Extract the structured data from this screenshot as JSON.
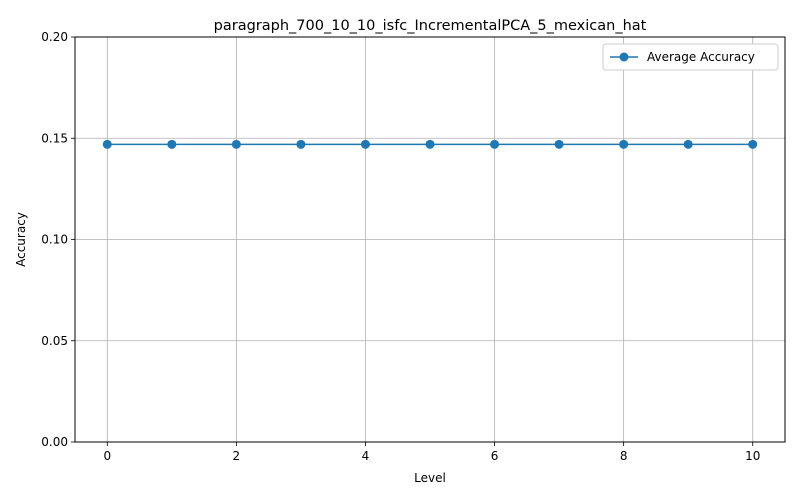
{
  "chart_data": {
    "type": "line",
    "title": "paragraph_700_10_10_isfc_IncrementalPCA_5_mexican_hat",
    "xlabel": "Level",
    "ylabel": "Accuracy",
    "xlim": [
      -0.5,
      10.5
    ],
    "ylim": [
      0,
      0.2
    ],
    "xticks": [
      0,
      2,
      4,
      6,
      8,
      10
    ],
    "yticks": [
      0.0,
      0.05,
      0.1,
      0.15,
      0.2
    ],
    "ytick_labels": [
      "0.00",
      "0.05",
      "0.10",
      "0.15",
      "0.20"
    ],
    "grid": true,
    "legend_position": "top-right",
    "x": [
      0,
      1,
      2,
      3,
      4,
      5,
      6,
      7,
      8,
      9,
      10
    ],
    "series": [
      {
        "name": "Average Accuracy",
        "color": "#1f77b4",
        "marker": "circle",
        "values": [
          0.147,
          0.147,
          0.147,
          0.147,
          0.147,
          0.147,
          0.147,
          0.147,
          0.147,
          0.147,
          0.147
        ]
      }
    ]
  }
}
